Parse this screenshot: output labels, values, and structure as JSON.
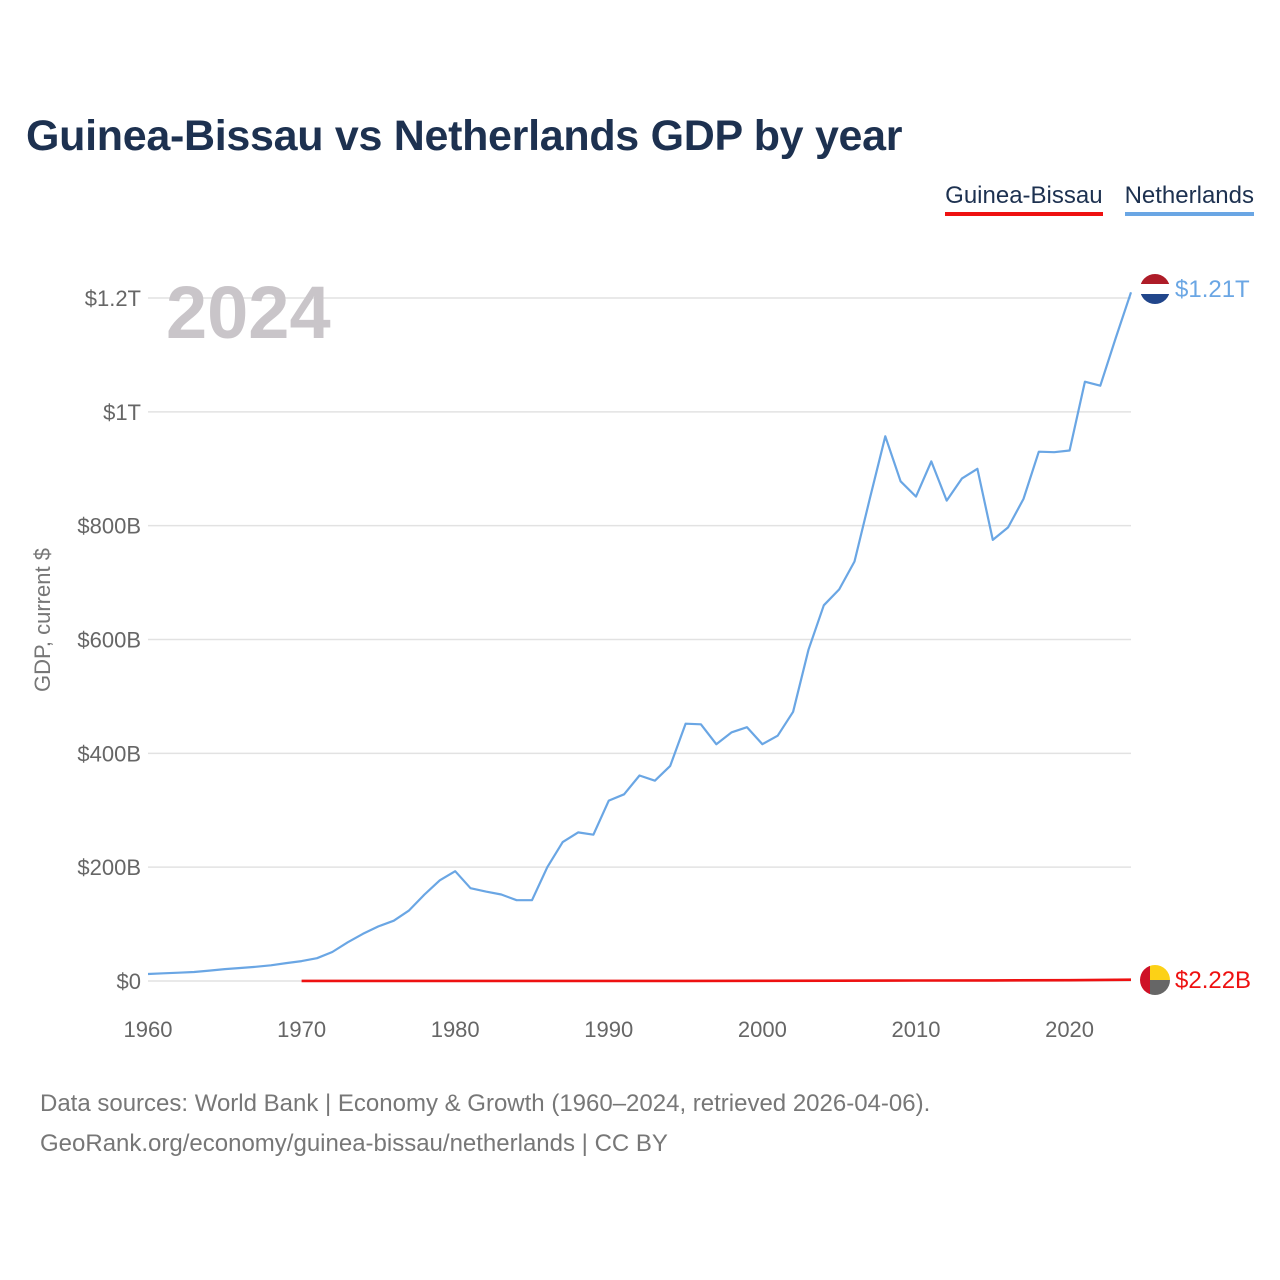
{
  "title": "Guinea-Bissau vs Netherlands GDP by year",
  "legend": [
    {
      "label": "Guinea-Bissau",
      "color": "#ee1111"
    },
    {
      "label": "Netherlands",
      "color": "#6aa6e4"
    }
  ],
  "year_watermark": "2024",
  "end_labels": {
    "guinea_bissau": "$2.22B",
    "netherlands": "$1.21T"
  },
  "source_line1": "Data sources: World Bank | Economy & Growth (1960–2024, retrieved 2026-04-06).",
  "source_line2": "GeoRank.org/economy/guinea-bissau/netherlands | CC BY",
  "chart_data": {
    "type": "line",
    "title": "Guinea-Bissau vs Netherlands GDP by year",
    "xlabel": "",
    "ylabel": "GDP, current $",
    "xlim": [
      1960,
      2024
    ],
    "ylim": [
      0,
      1200
    ],
    "yunit": "billion USD",
    "x_ticks": [
      1960,
      1970,
      1980,
      1990,
      2000,
      2010,
      2020
    ],
    "x_tick_labels": [
      "1960",
      "1970",
      "1980",
      "1990",
      "2000",
      "2010",
      "2020"
    ],
    "y_ticks": [
      0,
      200,
      400,
      600,
      800,
      1000,
      1200
    ],
    "y_tick_labels": [
      "$0",
      "$200B",
      "$400B",
      "$600B",
      "$800B",
      "$1T",
      "$1.2T"
    ],
    "grid": true,
    "series": [
      {
        "name": "Netherlands",
        "color": "#6aa6e4",
        "x": [
          1960,
          1961,
          1962,
          1963,
          1964,
          1965,
          1966,
          1967,
          1968,
          1969,
          1970,
          1971,
          1972,
          1973,
          1974,
          1975,
          1976,
          1977,
          1978,
          1979,
          1980,
          1981,
          1982,
          1983,
          1984,
          1985,
          1986,
          1987,
          1988,
          1989,
          1990,
          1991,
          1992,
          1993,
          1994,
          1995,
          1996,
          1997,
          1998,
          1999,
          2000,
          2001,
          2002,
          2003,
          2004,
          2005,
          2006,
          2007,
          2008,
          2009,
          2010,
          2011,
          2012,
          2013,
          2014,
          2015,
          2016,
          2017,
          2018,
          2019,
          2020,
          2021,
          2022,
          2023,
          2024
        ],
        "values": [
          12.3,
          13.5,
          14.6,
          15.8,
          18.3,
          20.9,
          22.9,
          25.0,
          27.6,
          31.4,
          35.0,
          40.0,
          51.0,
          68.0,
          83.0,
          96.0,
          106.0,
          124.0,
          152.0,
          177.0,
          193.0,
          163.0,
          157.0,
          152.0,
          142.0,
          142.0,
          200.0,
          244.0,
          261.0,
          257.0,
          317.0,
          328.0,
          361.0,
          352.0,
          378.0,
          452.0,
          451.0,
          416.0,
          437.0,
          446.0,
          416.0,
          431.0,
          473.0,
          582.0,
          660.0,
          688.0,
          737.0,
          848.0,
          957.0,
          878.0,
          851.0,
          913.0,
          844.0,
          883.0,
          900.0,
          775.0,
          797.0,
          847.0,
          930.0,
          929.0,
          932.0,
          1053.0,
          1046.0,
          1129.0,
          1210.0
        ]
      },
      {
        "name": "Guinea-Bissau",
        "color": "#ee1111",
        "x": [
          1970,
          1975,
          1980,
          1985,
          1990,
          1995,
          2000,
          2005,
          2010,
          2015,
          2020,
          2024
        ],
        "values": [
          0.1,
          0.12,
          0.11,
          0.15,
          0.24,
          0.25,
          0.37,
          0.59,
          0.85,
          1.05,
          1.43,
          2.22
        ]
      }
    ]
  }
}
